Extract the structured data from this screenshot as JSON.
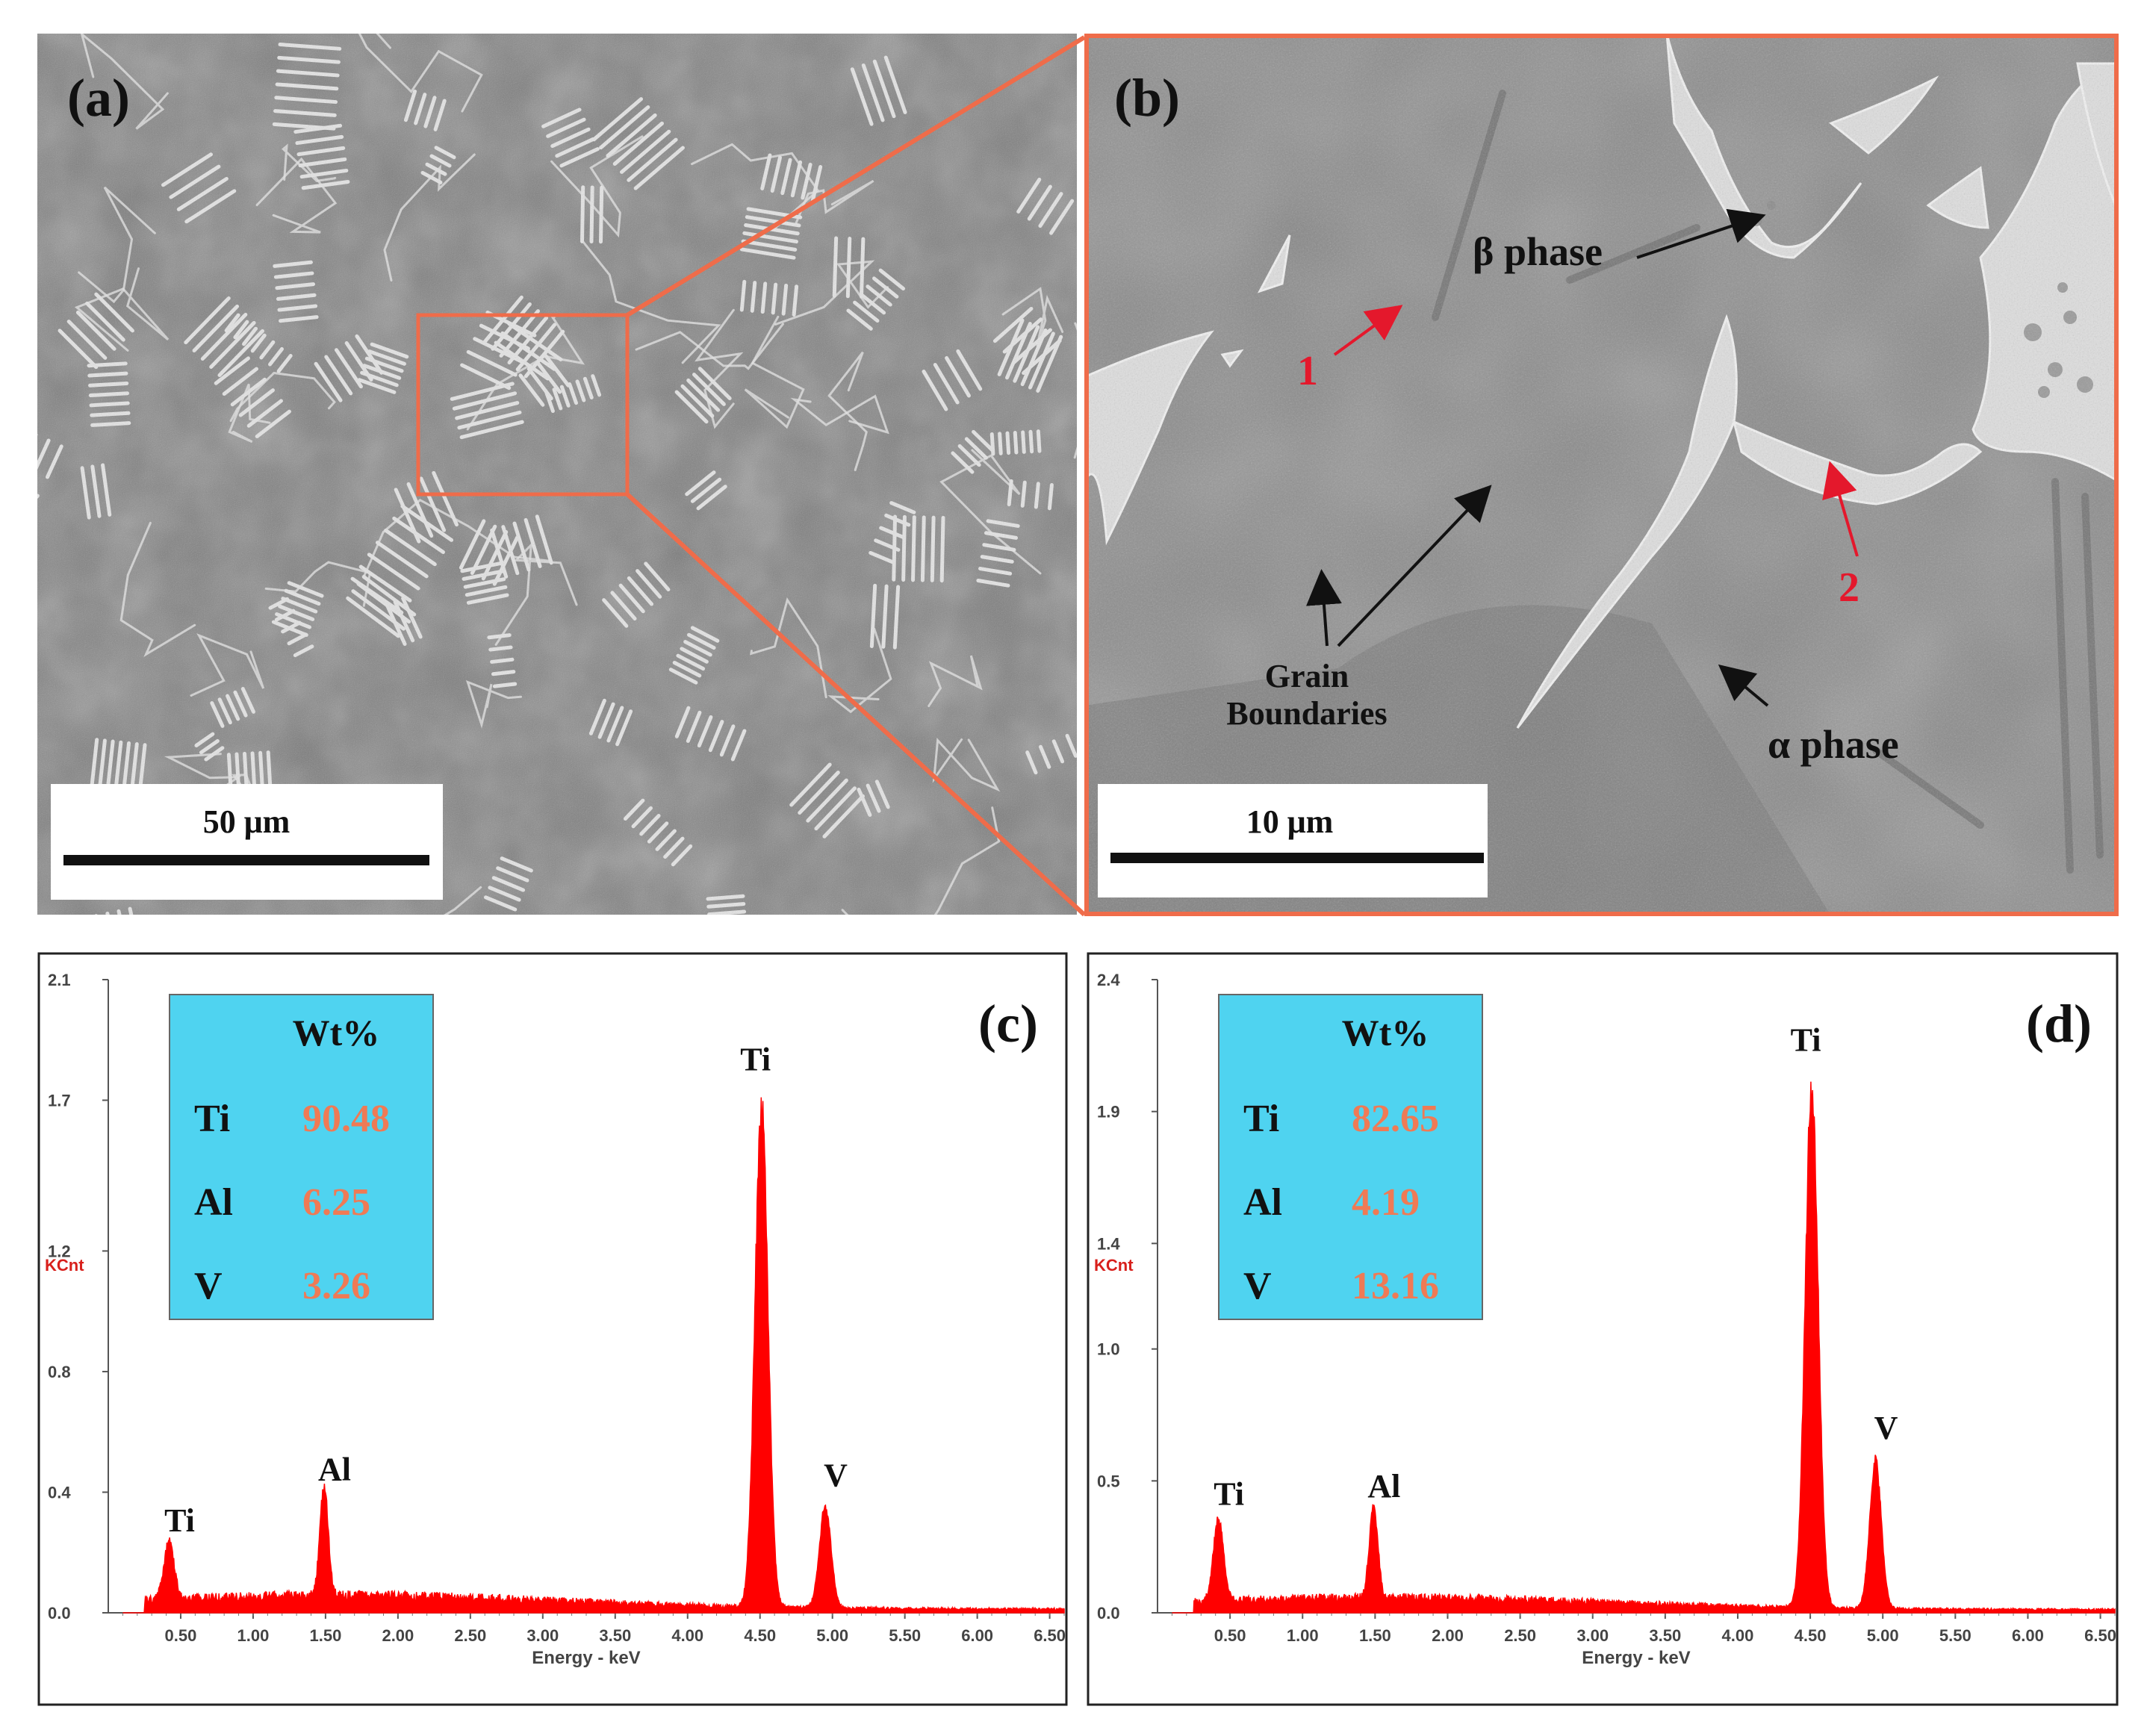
{
  "panel_a": {
    "label": "(a)",
    "scale_bar": "50 μm",
    "colors": {
      "frame": "#ef6c4a"
    }
  },
  "panel_b": {
    "label": "(b)",
    "scale_bar": "10 μm",
    "annotations": {
      "beta": "β phase",
      "alpha": "α phase",
      "grain_line1": "Grain",
      "grain_line2": "Boundaries",
      "point1": "1",
      "point2": "2"
    },
    "colors": {
      "frame": "#ef6c4a",
      "point": "#e4182c"
    }
  },
  "chart_data": [
    {
      "type": "line",
      "panel_label": "(c)",
      "xlabel": "Energy - keV",
      "ylabel": "KCnt",
      "xlim": [
        0,
        6.6
      ],
      "ylim": [
        0,
        2.1
      ],
      "xticks": [
        "0.50",
        "1.00",
        "1.50",
        "2.00",
        "2.50",
        "3.00",
        "3.50",
        "4.00",
        "4.50",
        "5.00",
        "5.50",
        "6.00",
        "6.50"
      ],
      "yticks": [
        "0.0",
        "0.4",
        "0.8",
        "1.2",
        "1.7",
        "2.1"
      ],
      "peaks": [
        {
          "label": "Ti",
          "x": 0.42,
          "y": 0.2
        },
        {
          "label": "Al",
          "x": 1.49,
          "y": 0.37
        },
        {
          "label": "Ti",
          "x": 4.51,
          "y": 1.73
        },
        {
          "label": "V",
          "x": 4.95,
          "y": 0.35
        }
      ],
      "table": {
        "header": "Wt%",
        "rows": [
          {
            "element": "Ti",
            "value": "90.48"
          },
          {
            "element": "Al",
            "value": "6.25"
          },
          {
            "element": "V",
            "value": "3.26"
          }
        ]
      },
      "colors": {
        "spectrum": "#ff0000",
        "table_bg": "#4fd3f0",
        "value": "#ef7a55",
        "ylabel": "#d8201c"
      }
    },
    {
      "type": "line",
      "panel_label": "(d)",
      "xlabel": "Energy - keV",
      "ylabel": "KCnt",
      "xlim": [
        0,
        6.6
      ],
      "ylim": [
        0,
        2.4
      ],
      "xticks": [
        "0.50",
        "1.00",
        "1.50",
        "2.00",
        "2.50",
        "3.00",
        "3.50",
        "4.00",
        "4.50",
        "5.00",
        "5.50",
        "6.00",
        "6.50"
      ],
      "yticks": [
        "0.0",
        "0.5",
        "1.0",
        "1.4",
        "1.9",
        "2.4"
      ],
      "peaks": [
        {
          "label": "Ti",
          "x": 0.42,
          "y": 0.33
        },
        {
          "label": "Al",
          "x": 1.49,
          "y": 0.36
        },
        {
          "label": "Ti",
          "x": 4.51,
          "y": 2.05
        },
        {
          "label": "V",
          "x": 4.95,
          "y": 0.58
        }
      ],
      "table": {
        "header": "Wt%",
        "rows": [
          {
            "element": "Ti",
            "value": "82.65"
          },
          {
            "element": "Al",
            "value": "4.19"
          },
          {
            "element": "V",
            "value": "13.16"
          }
        ]
      },
      "colors": {
        "spectrum": "#ff0000",
        "table_bg": "#4fd3f0",
        "value": "#ef7a55",
        "ylabel": "#d8201c"
      }
    }
  ]
}
